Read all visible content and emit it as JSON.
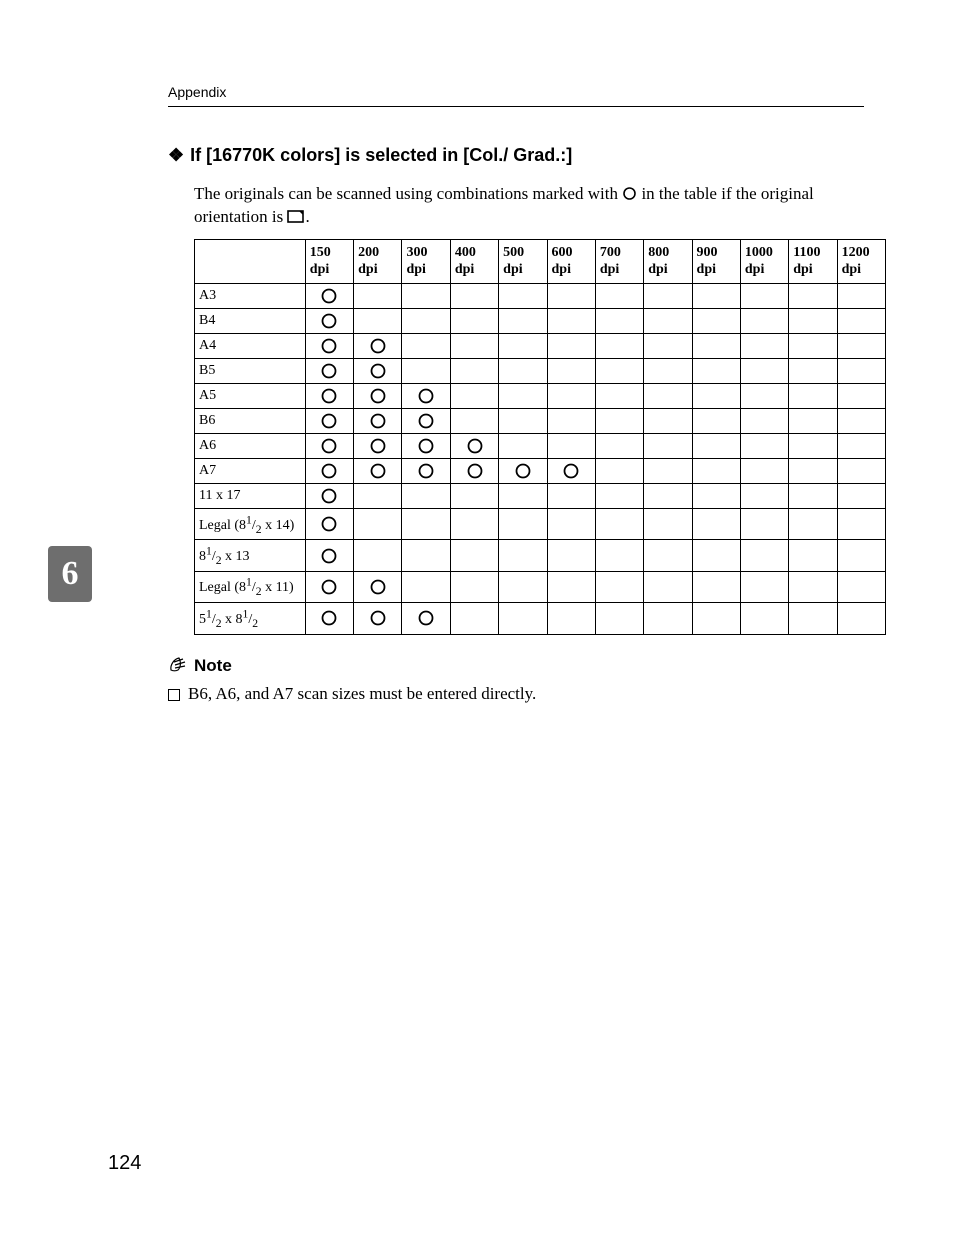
{
  "header": {
    "section": "Appendix"
  },
  "section": {
    "diamond": "❖",
    "title": "If [16770K colors] is selected in [Col./ Grad.:]",
    "para_before": "The originals can be scanned using combinations marked with ",
    "para_mid": " in the table if the original orientation is ",
    "para_end": "."
  },
  "table": {
    "dpi_values": [
      "150",
      "200",
      "300",
      "400",
      "500",
      "600",
      "700",
      "800",
      "900",
      "1000",
      "1100",
      "1200"
    ],
    "dpi_unit": "dpi",
    "rows": [
      {
        "label_html": "A3",
        "marks": [
          1,
          0,
          0,
          0,
          0,
          0,
          0,
          0,
          0,
          0,
          0,
          0
        ]
      },
      {
        "label_html": "B4",
        "marks": [
          1,
          0,
          0,
          0,
          0,
          0,
          0,
          0,
          0,
          0,
          0,
          0
        ]
      },
      {
        "label_html": "A4",
        "marks": [
          1,
          1,
          0,
          0,
          0,
          0,
          0,
          0,
          0,
          0,
          0,
          0
        ]
      },
      {
        "label_html": "B5",
        "marks": [
          1,
          1,
          0,
          0,
          0,
          0,
          0,
          0,
          0,
          0,
          0,
          0
        ]
      },
      {
        "label_html": "A5",
        "marks": [
          1,
          1,
          1,
          0,
          0,
          0,
          0,
          0,
          0,
          0,
          0,
          0
        ]
      },
      {
        "label_html": "B6",
        "marks": [
          1,
          1,
          1,
          0,
          0,
          0,
          0,
          0,
          0,
          0,
          0,
          0
        ]
      },
      {
        "label_html": "A6",
        "marks": [
          1,
          1,
          1,
          1,
          0,
          0,
          0,
          0,
          0,
          0,
          0,
          0
        ]
      },
      {
        "label_html": "A7",
        "marks": [
          1,
          1,
          1,
          1,
          1,
          1,
          0,
          0,
          0,
          0,
          0,
          0
        ]
      },
      {
        "label_html": "11 x 17",
        "marks": [
          1,
          0,
          0,
          0,
          0,
          0,
          0,
          0,
          0,
          0,
          0,
          0
        ]
      },
      {
        "label_html": "Legal (8<sup>1</sup>/<sub>2</sub> x 14)",
        "marks": [
          1,
          0,
          0,
          0,
          0,
          0,
          0,
          0,
          0,
          0,
          0,
          0
        ]
      },
      {
        "label_html": "8<sup>1</sup>/<sub>2</sub> x 13",
        "marks": [
          1,
          0,
          0,
          0,
          0,
          0,
          0,
          0,
          0,
          0,
          0,
          0
        ]
      },
      {
        "label_html": "Legal (8<sup>1</sup>/<sub>2</sub> x 11)",
        "marks": [
          1,
          1,
          0,
          0,
          0,
          0,
          0,
          0,
          0,
          0,
          0,
          0
        ]
      },
      {
        "label_html": "5<sup>1</sup>/<sub>2</sub> x 8<sup>1</sup>/<sub>2</sub>",
        "marks": [
          1,
          1,
          1,
          0,
          0,
          0,
          0,
          0,
          0,
          0,
          0,
          0
        ]
      }
    ]
  },
  "note": {
    "heading": "Note",
    "text": "B6, A6, and A7 scan sizes must be entered directly."
  },
  "sidetab": "6",
  "pagenum": "124",
  "style": {
    "circle_stroke": "#000000",
    "tab_bg": "#6e6e6e"
  }
}
